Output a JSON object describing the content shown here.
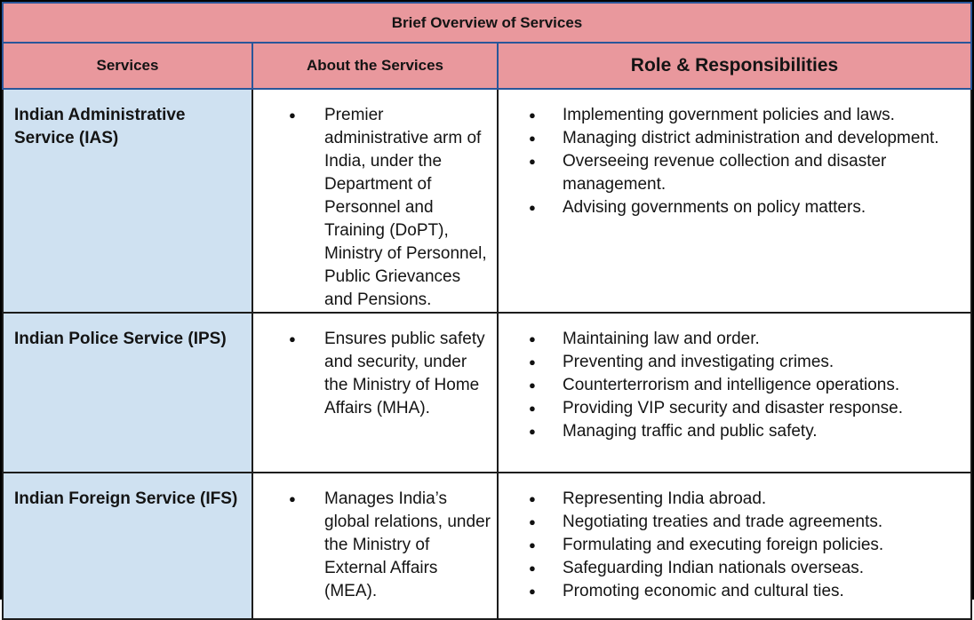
{
  "colors": {
    "header_bg": "#e9989d",
    "service_column_bg": "#cfe1f1",
    "header_border": "#2a5699",
    "body_border": "#1c1c1c",
    "outer_frame": "#000000",
    "text": "#141414"
  },
  "table": {
    "title": "Brief Overview of Services",
    "bullet_glyph": "●",
    "columns": [
      "Services",
      "About the Services",
      "Role & Responsibilities"
    ],
    "rows": [
      {
        "service": "Indian Administrative Service (IAS)",
        "about": [
          "Premier administrative arm of India, under the Department of Personnel and Training (DoPT), Ministry of Personnel, Public Grievances and Pensions."
        ],
        "roles": [
          "Implementing government policies and laws.",
          "Managing district administration and development.",
          "Overseeing revenue collection and disaster management.",
          "Advising governments on policy matters."
        ]
      },
      {
        "service": "Indian Police Service (IPS)",
        "about": [
          "Ensures public safety and security, under the Ministry of Home Affairs (MHA)."
        ],
        "roles": [
          "Maintaining law and order.",
          "Preventing and investigating crimes.",
          "Counterterrorism and intelligence operations.",
          "Providing VIP security and disaster response.",
          "Managing traffic and public safety."
        ]
      },
      {
        "service": "Indian Foreign Service (IFS)",
        "about": [
          "Manages India’s global relations, under the Ministry of External Affairs (MEA)."
        ],
        "roles": [
          "Representing India abroad.",
          "Negotiating treaties and trade agreements.",
          "Formulating and executing foreign policies.",
          "Safeguarding Indian nationals overseas.",
          "Promoting economic and cultural ties."
        ]
      }
    ]
  }
}
